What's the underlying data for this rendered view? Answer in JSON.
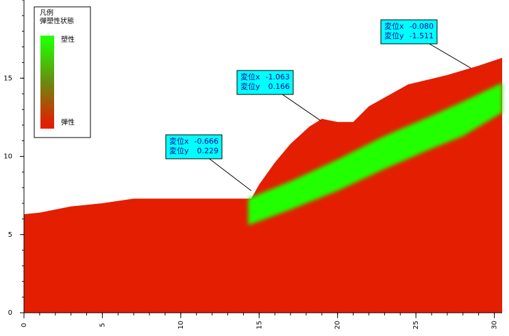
{
  "chart_data": {
    "type": "slope-field",
    "xlim": [
      0,
      30.5
    ],
    "ylim": [
      0,
      20
    ],
    "xticks": [
      0,
      5,
      10,
      15,
      20,
      25,
      30
    ],
    "yticks": [
      0,
      5,
      10,
      15
    ],
    "minor_tick_step": 1,
    "ground": {
      "color": "#e41e00",
      "x": [
        0,
        1,
        3,
        5,
        7,
        10,
        14.5,
        15,
        16,
        17,
        18.2,
        19,
        20,
        21,
        22,
        24.5,
        27,
        29,
        30.5
      ],
      "y": [
        6.3,
        6.4,
        6.8,
        7.0,
        7.3,
        7.3,
        7.3,
        8.2,
        9.6,
        10.8,
        11.9,
        12.4,
        12.2,
        12.2,
        13.2,
        14.6,
        15.2,
        15.8,
        16.3
      ]
    },
    "plastic_zone": {
      "color": "#22ff00",
      "x": [
        14.3,
        17,
        20,
        23,
        26,
        28,
        30.5
      ],
      "upper": [
        7.3,
        8.4,
        9.8,
        11.3,
        12.6,
        13.5,
        14.7
      ],
      "lower": [
        5.6,
        6.6,
        7.8,
        9.2,
        10.5,
        11.3,
        12.8
      ]
    },
    "legend": {
      "title": "凡例",
      "subtitle": "弾塑性状態",
      "top_label": "塑性",
      "bottom_label": "弾性",
      "top_color": "#22ff00",
      "bottom_color": "#e41e00"
    },
    "annotations": [
      {
        "point": [
          14.5,
          7.8
        ],
        "lines": [
          {
            "label": "変位x",
            "value": -0.666
          },
          {
            "label": "変位y",
            "value": 0.229
          }
        ]
      },
      {
        "point": [
          18.9,
          12.3
        ],
        "lines": [
          {
            "label": "変位x",
            "value": -1.063
          },
          {
            "label": "変位y",
            "value": 0.166
          }
        ]
      },
      {
        "point": [
          28.5,
          15.65
        ],
        "lines": [
          {
            "label": "変位x",
            "value": -0.08,
            "value_label": "-0.080"
          },
          {
            "label": "変位y",
            "value": -1.511
          }
        ]
      }
    ]
  }
}
